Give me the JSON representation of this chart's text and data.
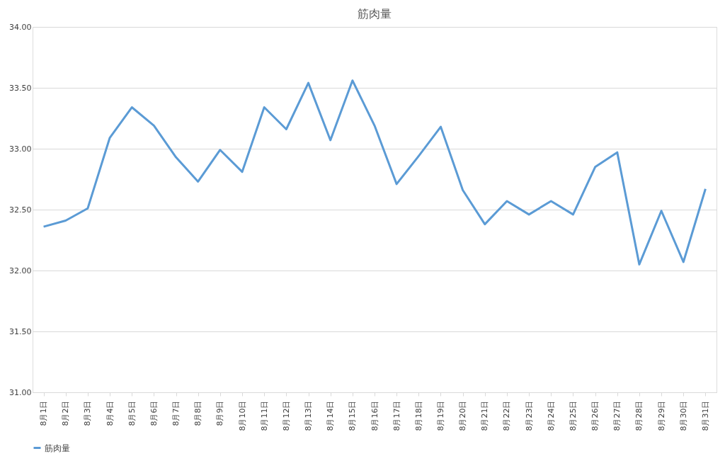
{
  "chart_data": {
    "type": "line",
    "title": "筋肉量",
    "categories": [
      "8月1日",
      "8月2日",
      "8月3日",
      "8月4日",
      "8月5日",
      "8月6日",
      "8月7日",
      "8月8日",
      "8月9日",
      "8月10日",
      "8月11日",
      "8月12日",
      "8月13日",
      "8月14日",
      "8月15日",
      "8月16日",
      "8月17日",
      "8月18日",
      "8月19日",
      "8月20日",
      "8月21日",
      "8月22日",
      "8月23日",
      "8月24日",
      "8月25日",
      "8月26日",
      "8月27日",
      "8月28日",
      "8月29日",
      "8月30日",
      "8月31日"
    ],
    "series": [
      {
        "name": "筋肉量",
        "color": "#5b9bd5",
        "values": [
          32.36,
          32.41,
          32.51,
          33.09,
          33.34,
          33.19,
          32.93,
          32.73,
          32.99,
          32.81,
          33.34,
          33.16,
          33.54,
          33.07,
          33.56,
          33.19,
          32.71,
          32.94,
          33.18,
          32.66,
          32.38,
          32.57,
          32.46,
          32.57,
          32.46,
          32.85,
          32.97,
          32.05,
          32.49,
          32.07,
          32.67
        ]
      }
    ],
    "ylim": [
      31,
      34
    ],
    "yticks": [
      {
        "value": 31,
        "label": "31.00"
      },
      {
        "value": 31.5,
        "label": "31.50"
      },
      {
        "value": 32,
        "label": "32.00"
      },
      {
        "value": 32.5,
        "label": "32.50"
      },
      {
        "value": 33,
        "label": "33.00"
      },
      {
        "value": 33.5,
        "label": "33.50"
      },
      {
        "value": 34,
        "label": "34.00"
      }
    ],
    "grid": "y",
    "legend": "bottom",
    "marker": "none",
    "line_style": "solid"
  }
}
